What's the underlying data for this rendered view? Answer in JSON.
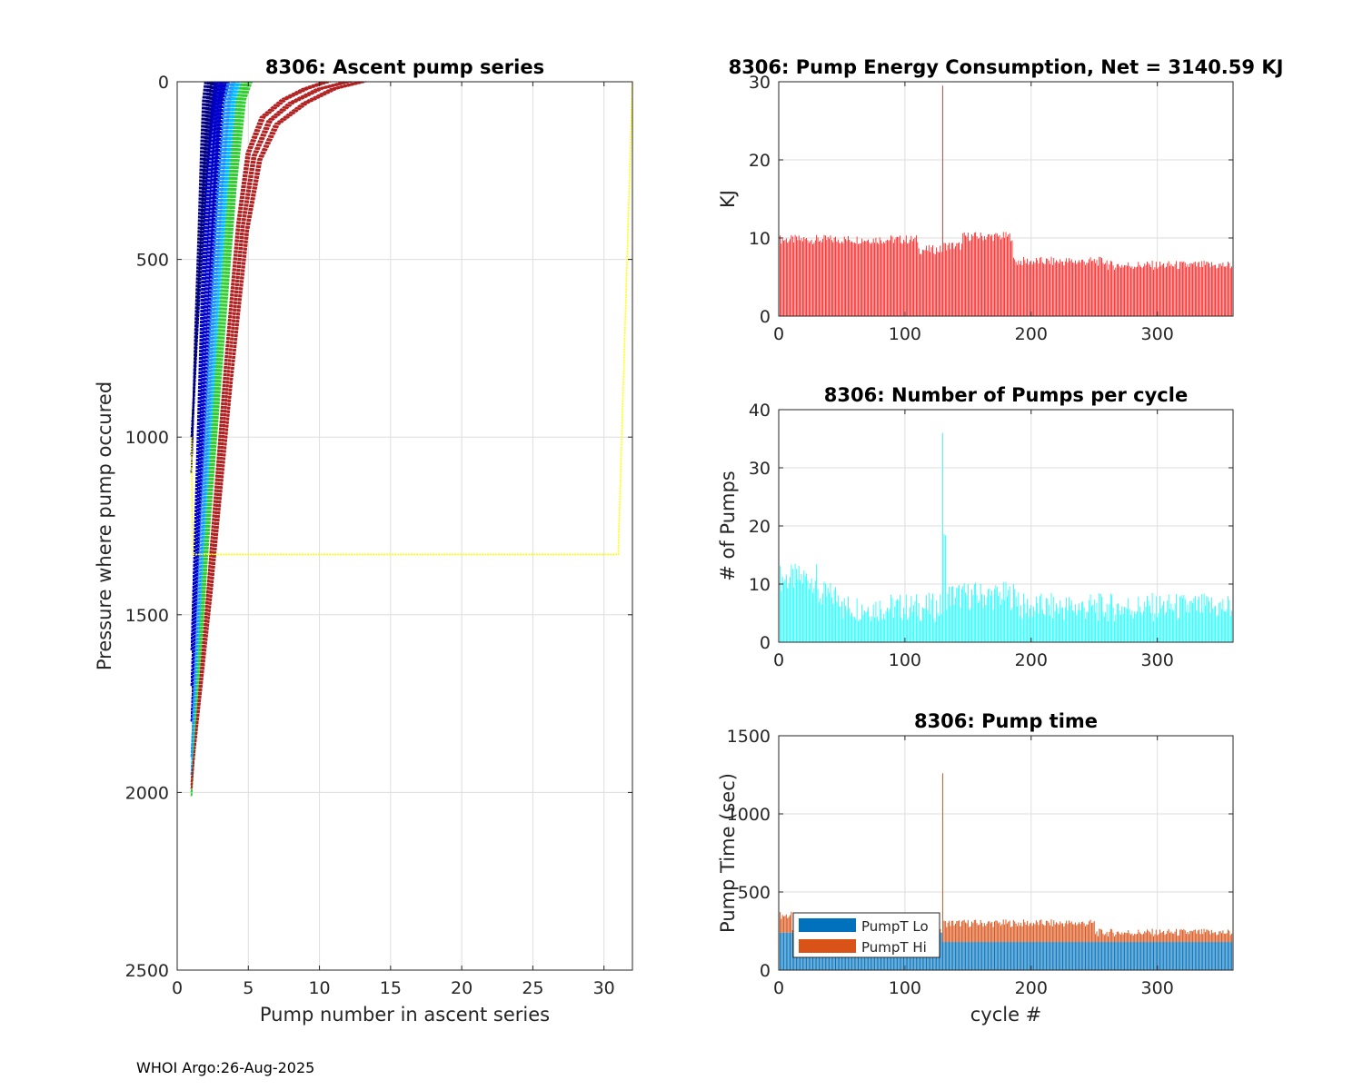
{
  "footer": "WHOI Argo:26-Aug-2025",
  "colors": {
    "energy_bar": "#ff0000",
    "pumps_bar": "#00ffff",
    "pumpt_lo": "#0072bd",
    "pumpt_hi": "#d95319",
    "grid": "#dedede",
    "axis": "#262626",
    "yellow_track": "#ffff00"
  },
  "chart_data": [
    {
      "id": "ascent",
      "type": "line",
      "title": "8306: Ascent pump series",
      "xlabel": "Pump number in ascent series",
      "ylabel": "Pressure where pump occured",
      "xlim": [
        0,
        32
      ],
      "ylim": [
        0,
        2500
      ],
      "y_reversed": true,
      "xticks": [
        0,
        5,
        10,
        15,
        20,
        25,
        30
      ],
      "yticks": [
        0,
        500,
        1000,
        1500,
        2000,
        2500
      ],
      "grid": true,
      "series_color_groups": [
        {
          "color": "#000080",
          "profiles": [
            {
              "x": [
                1,
                1.3,
                1.6,
                1.8,
                2.0,
                2.2
              ],
              "y": [
                1100,
                700,
                400,
                200,
                50,
                0
              ]
            },
            {
              "x": [
                1,
                1.5,
                1.9,
                2.2,
                2.4
              ],
              "y": [
                1050,
                600,
                300,
                100,
                0
              ]
            },
            {
              "x": [
                1,
                1.6,
                2.0,
                2.4,
                2.6
              ],
              "y": [
                1000,
                550,
                250,
                80,
                0
              ]
            }
          ]
        },
        {
          "color": "#0000cd",
          "profiles": [
            {
              "x": [
                1,
                1.4,
                1.8,
                2.2,
                2.6,
                2.9
              ],
              "y": [
                1600,
                1100,
                600,
                300,
                80,
                0
              ]
            },
            {
              "x": [
                1,
                1.5,
                2.0,
                2.5,
                2.9,
                3.2
              ],
              "y": [
                1700,
                1150,
                650,
                300,
                60,
                0
              ]
            },
            {
              "x": [
                1,
                1.6,
                2.2,
                2.7,
                3.1,
                3.4
              ],
              "y": [
                1800,
                1200,
                700,
                320,
                60,
                0
              ]
            }
          ]
        },
        {
          "color": "#1e90ff",
          "profiles": [
            {
              "x": [
                1,
                1.7,
                2.4,
                3.0,
                3.5,
                3.8
              ],
              "y": [
                1900,
                1250,
                700,
                300,
                60,
                0
              ]
            },
            {
              "x": [
                1,
                1.8,
                2.6,
                3.3,
                3.8,
                4.1
              ],
              "y": [
                1950,
                1300,
                720,
                300,
                50,
                0
              ]
            }
          ]
        },
        {
          "color": "#00bfff",
          "profiles": [
            {
              "x": [
                1,
                1.9,
                2.8,
                3.5,
                4.0,
                4.3
              ],
              "y": [
                1980,
                1300,
                700,
                280,
                50,
                0
              ]
            }
          ]
        },
        {
          "color": "#32cd32",
          "profiles": [
            {
              "x": [
                1,
                2.0,
                3.0,
                3.8,
                4.4,
                4.8
              ],
              "y": [
                2000,
                1300,
                700,
                280,
                50,
                0
              ]
            },
            {
              "x": [
                1,
                2.1,
                3.2,
                4.0,
                4.6,
                5.0
              ],
              "y": [
                2010,
                1320,
                720,
                290,
                50,
                0
              ]
            }
          ]
        },
        {
          "color": "#b22222",
          "profiles": [
            {
              "x": [
                1,
                2.2,
                3.4,
                4.3,
                5.0,
                6.0,
                7.5,
                9.0,
                10.5
              ],
              "y": [
                1990,
                1400,
                800,
                400,
                200,
                100,
                50,
                20,
                0
              ]
            },
            {
              "x": [
                1,
                2.3,
                3.6,
                4.6,
                5.4,
                6.5,
                8.0,
                10.0,
                12.0
              ],
              "y": [
                1980,
                1420,
                820,
                410,
                210,
                110,
                60,
                20,
                0
              ]
            },
            {
              "x": [
                1,
                2.4,
                3.8,
                4.9,
                5.8,
                7.0,
                9.0,
                11.0,
                13.0
              ],
              "y": [
                1970,
                1440,
                840,
                420,
                220,
                120,
                60,
                20,
                0
              ]
            }
          ]
        },
        {
          "color": "#ffff00",
          "profiles": [
            {
              "x": [
                1,
                1.1,
                31,
                32
              ],
              "y": [
                1000,
                1330,
                1330,
                0
              ]
            }
          ]
        }
      ]
    },
    {
      "id": "energy",
      "type": "bar",
      "title": "8306: Pump Energy Consumption,  Net = 3140.59 KJ",
      "xlabel": "",
      "ylabel": "KJ",
      "xlim": [
        0,
        360
      ],
      "ylim": [
        0,
        30
      ],
      "xticks": [
        0,
        100,
        200,
        300
      ],
      "yticks": [
        0,
        10,
        20,
        30
      ],
      "grid": true,
      "segments": [
        {
          "from": 1,
          "to": 110,
          "value": 9.8
        },
        {
          "from": 111,
          "to": 129,
          "value": 8.5
        },
        {
          "from": 130,
          "to": 130,
          "value": 29.5
        },
        {
          "from": 131,
          "to": 145,
          "value": 9.0
        },
        {
          "from": 146,
          "to": 185,
          "value": 10.2
        },
        {
          "from": 186,
          "to": 260,
          "value": 7.0
        },
        {
          "from": 261,
          "to": 360,
          "value": 6.5
        }
      ]
    },
    {
      "id": "pumps",
      "type": "bar",
      "title": "8306: Number of Pumps per cycle",
      "xlabel": "",
      "ylabel": "# of Pumps",
      "xlim": [
        0,
        360
      ],
      "ylim": [
        0,
        40
      ],
      "xticks": [
        0,
        100,
        200,
        300
      ],
      "yticks": [
        0,
        10,
        20,
        30,
        40
      ],
      "grid": true,
      "segments": [
        {
          "from": 1,
          "to": 30,
          "value": 11
        },
        {
          "from": 31,
          "to": 50,
          "value": 8
        },
        {
          "from": 51,
          "to": 129,
          "value": 6
        },
        {
          "from": 130,
          "to": 130,
          "value": 36
        },
        {
          "from": 131,
          "to": 132,
          "value": 17
        },
        {
          "from": 133,
          "to": 190,
          "value": 8
        },
        {
          "from": 191,
          "to": 360,
          "value": 6
        }
      ]
    },
    {
      "id": "pumptime",
      "type": "stacked-bar",
      "title": "8306: Pump time",
      "xlabel": "cycle #",
      "ylabel": "Pump Time (sec)",
      "xlim": [
        0,
        360
      ],
      "ylim": [
        0,
        1500
      ],
      "xticks": [
        0,
        100,
        200,
        300
      ],
      "yticks": [
        0,
        500,
        1000,
        1500
      ],
      "grid": true,
      "legend": {
        "position": "bottom-left",
        "entries": [
          "PumpT Lo",
          "PumpT Hi"
        ]
      },
      "series": [
        {
          "name": "PumpT Lo",
          "segments": [
            {
              "from": 1,
              "to": 129,
              "value": 240
            },
            {
              "from": 130,
              "to": 360,
              "value": 180
            }
          ]
        },
        {
          "name": "PumpT Hi",
          "segments": [
            {
              "from": 1,
              "to": 10,
              "value": 110
            },
            {
              "from": 11,
              "to": 129,
              "value": 0
            },
            {
              "from": 130,
              "to": 130,
              "value": 1080
            },
            {
              "from": 131,
              "to": 250,
              "value": 120
            },
            {
              "from": 251,
              "to": 360,
              "value": 60
            }
          ]
        }
      ]
    }
  ]
}
